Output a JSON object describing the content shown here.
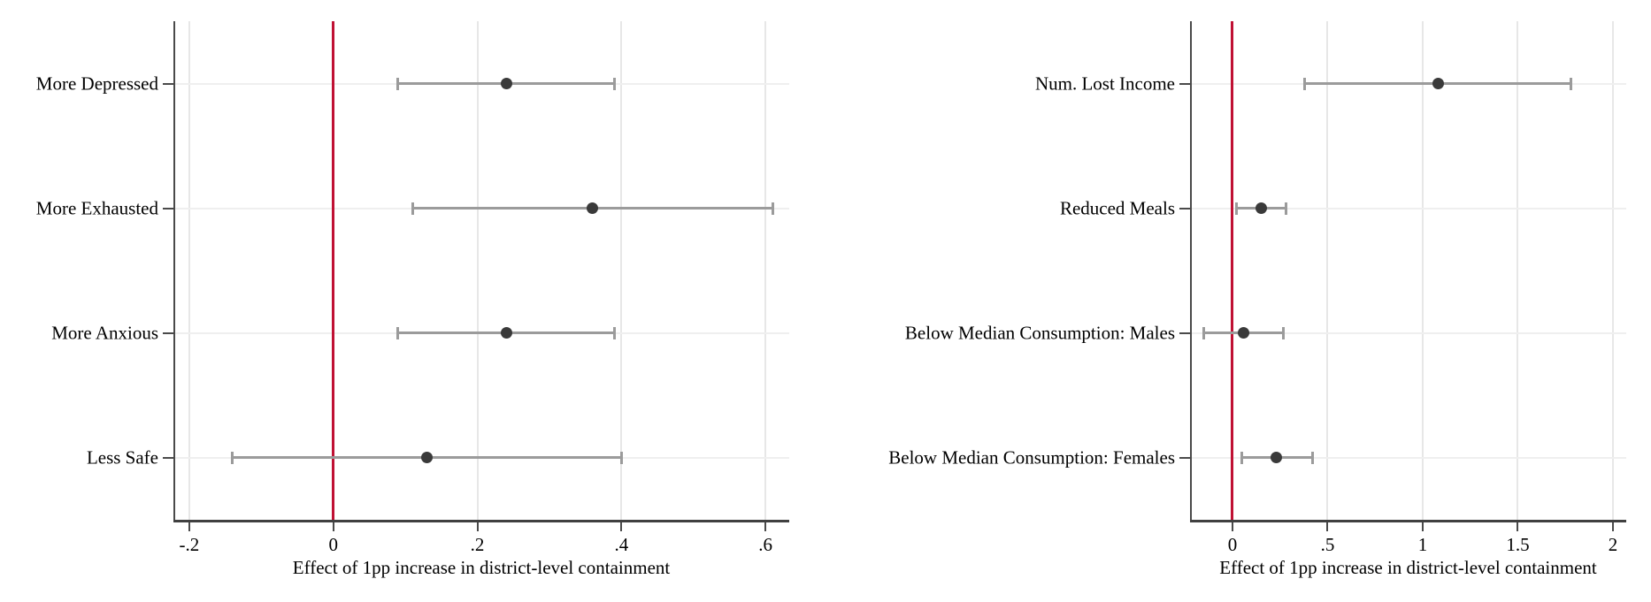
{
  "figure": {
    "background_color": "#ffffff",
    "panel_count": 2
  },
  "chart_data": [
    {
      "type": "scatter",
      "subtype": "coefficient_plot_with_horizontal_ci",
      "title": "",
      "categories": [
        "More Depressed",
        "More Exhausted",
        "More Anxious",
        "Less Safe"
      ],
      "estimates": [
        0.24,
        0.36,
        0.24,
        0.13
      ],
      "ci_low": [
        0.09,
        0.11,
        0.09,
        -0.14
      ],
      "ci_high": [
        0.39,
        0.61,
        0.39,
        0.4
      ],
      "xlabel": "Effect of 1pp increase in district-level containment",
      "ylabel": "",
      "xlim": [
        -0.222,
        0.633
      ],
      "x_ticks": [
        -0.2,
        0,
        0.2,
        0.4,
        0.6
      ],
      "x_tick_labels": [
        "-.2",
        "0",
        ".2",
        ".4",
        ".6"
      ],
      "reference_line_x": 0,
      "grid": true,
      "legend": false
    },
    {
      "type": "scatter",
      "subtype": "coefficient_plot_with_horizontal_ci",
      "title": "",
      "categories": [
        "Num. Lost Income",
        "Reduced Meals",
        "Below Median Consumption: Males",
        "Below Median Consumption: Females"
      ],
      "estimates": [
        1.08,
        0.15,
        0.06,
        0.23
      ],
      "ci_low": [
        0.38,
        0.02,
        -0.15,
        0.05
      ],
      "ci_high": [
        1.78,
        0.28,
        0.27,
        0.42
      ],
      "xlabel": "Effect of 1pp increase in district-level containment",
      "ylabel": "",
      "xlim": [
        -0.223,
        2.07
      ],
      "x_ticks": [
        0,
        0.5,
        1,
        1.5,
        2
      ],
      "x_tick_labels": [
        "0",
        ".5",
        "1",
        "1.5",
        "2"
      ],
      "reference_line_x": 0,
      "grid": true,
      "legend": false
    }
  ],
  "style": {
    "reference_line_color": "#c01134",
    "marker_color": "#3a3a3a",
    "ci_color": "#9b9b9b",
    "gridline_color": "#e7e7e7",
    "category_line_color": "#efefef",
    "axis_color": "#4a4a4a",
    "text_color": "#000000"
  }
}
